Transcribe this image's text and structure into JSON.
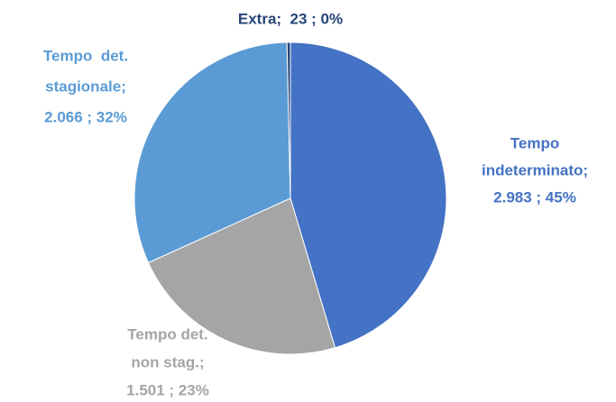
{
  "chart_data": {
    "type": "pie",
    "values": [
      2983,
      1501,
      2066,
      23
    ],
    "colors": [
      "#4472c4",
      "#a5a5a5",
      "#5b9bd5",
      "#264478"
    ],
    "labels": [
      [
        "Tempo",
        "indeterminato;",
        "2.983 ; 45%"
      ],
      [
        "Tempo det.",
        "non stag.;",
        "1.501 ; 23%"
      ],
      [
        "Tempo  det.",
        "stagionale;",
        "2.066 ; 32%"
      ],
      [
        "Extra;  23 ; 0%"
      ]
    ]
  }
}
